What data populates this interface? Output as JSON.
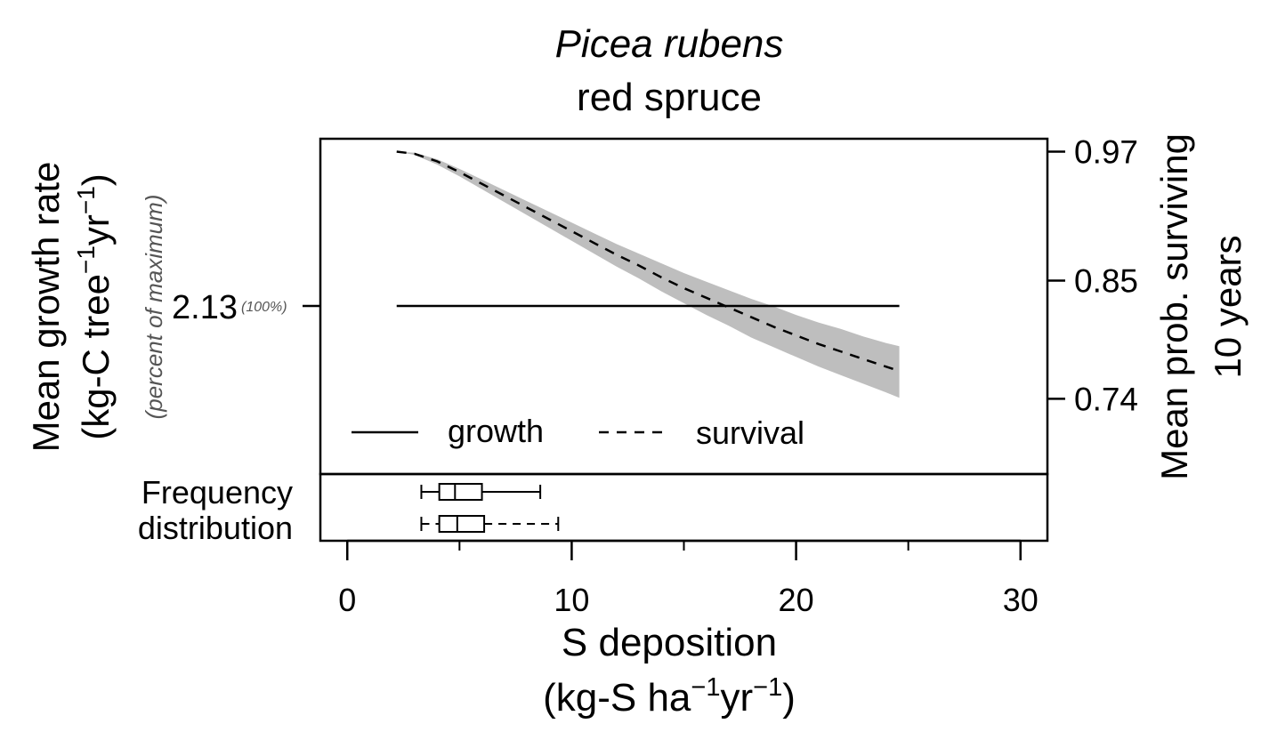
{
  "chart_data": {
    "type": "line",
    "title": "Picea rubens",
    "subtitle": "red spruce",
    "xlabel_line1": "S deposition",
    "xlabel_line2": {
      "pre": "(kg-S ha",
      "sup1": "−1",
      "mid": "yr",
      "sup2": "−1",
      "post": ")"
    },
    "xlim": [
      -1.2,
      31.2
    ],
    "xticks": [
      0,
      10,
      20,
      30
    ],
    "xtick_labels": [
      "0",
      "10",
      "20",
      "30"
    ],
    "left_axis": {
      "label_line1": "Mean growth rate",
      "label_line2": {
        "pre": "(kg-C tree",
        "sup1": "−1",
        "mid": "yr",
        "sup2": "−1",
        "post": ")"
      },
      "sublabel": "(percent of maximum)",
      "tick_value": "2.13",
      "tick_note": "(100%)"
    },
    "right_axis": {
      "label_line1": "Mean prob. surviving",
      "label_line2": "10 years",
      "ylim": [
        0.67,
        0.982
      ],
      "ticks": [
        0.97,
        0.85,
        0.74
      ],
      "tick_labels": [
        "0.97",
        "0.85",
        "0.74"
      ]
    },
    "series": [
      {
        "name": "growth",
        "style": "solid",
        "x": [
          2.2,
          24.6
        ],
        "y": [
          2.13,
          2.13
        ]
      },
      {
        "name": "survival",
        "style": "dashed",
        "x": [
          2.2,
          3,
          4,
          5,
          6,
          7,
          8,
          9,
          10,
          11,
          12,
          13,
          14,
          15,
          16,
          17,
          18,
          19,
          20,
          21,
          22,
          23,
          24,
          24.6
        ],
        "y": [
          0.97,
          0.968,
          0.961,
          0.951,
          0.94,
          0.929,
          0.918,
          0.907,
          0.896,
          0.885,
          0.874,
          0.864,
          0.853,
          0.843,
          0.834,
          0.825,
          0.816,
          0.807,
          0.799,
          0.791,
          0.784,
          0.777,
          0.77,
          0.766
        ],
        "band_upper": [
          0.97,
          0.969,
          0.963,
          0.954,
          0.944,
          0.934,
          0.924,
          0.914,
          0.904,
          0.894,
          0.884,
          0.875,
          0.866,
          0.857,
          0.849,
          0.841,
          0.833,
          0.826,
          0.818,
          0.811,
          0.805,
          0.798,
          0.792,
          0.789
        ],
        "band_lower": [
          0.97,
          0.967,
          0.958,
          0.947,
          0.935,
          0.923,
          0.911,
          0.899,
          0.887,
          0.875,
          0.863,
          0.852,
          0.84,
          0.829,
          0.818,
          0.808,
          0.797,
          0.788,
          0.779,
          0.77,
          0.762,
          0.754,
          0.746,
          0.741
        ],
        "band_color": "#bebebe"
      }
    ],
    "legend": {
      "placement": "bottom-left",
      "items": [
        "growth",
        "survival"
      ]
    },
    "frequency_panel": {
      "label_line1": "Frequency",
      "label_line2": "distribution",
      "boxplots": [
        {
          "series": "growth",
          "whisker_style": "solid",
          "min": 3.3,
          "q1": 4.1,
          "median": 4.8,
          "q3": 6.0,
          "max": 8.6
        },
        {
          "series": "survival",
          "whisker_style": "dashed",
          "min": 3.3,
          "q1": 4.1,
          "median": 4.9,
          "q3": 6.1,
          "max": 9.4
        }
      ]
    }
  }
}
